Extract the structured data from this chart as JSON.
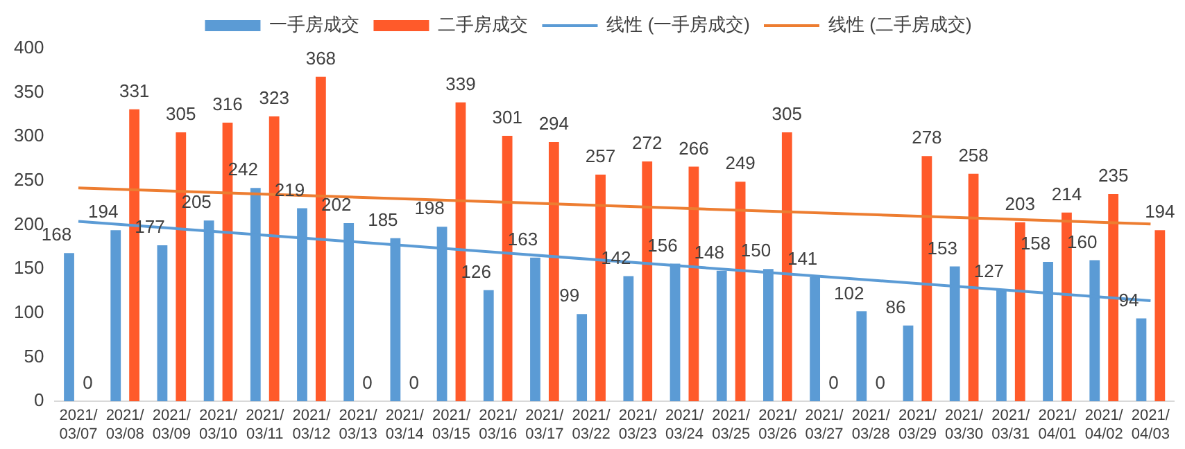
{
  "chart_data": {
    "type": "bar",
    "categories": [
      "2021/03/07",
      "2021/03/08",
      "2021/03/09",
      "2021/03/10",
      "2021/03/11",
      "2021/03/12",
      "2021/03/13",
      "2021/03/14",
      "2021/03/15",
      "2021/03/16",
      "2021/03/17",
      "2021/03/22",
      "2021/03/23",
      "2021/03/24",
      "2021/03/25",
      "2021/03/26",
      "2021/03/27",
      "2021/03/28",
      "2021/03/29",
      "2021/03/30",
      "2021/03/31",
      "2021/04/01",
      "2021/04/02",
      "2021/04/03"
    ],
    "series": [
      {
        "name": "一手房成交",
        "color": "#5b9bd5",
        "values": [
          168,
          194,
          177,
          205,
          242,
          219,
          202,
          185,
          198,
          126,
          163,
          99,
          142,
          156,
          148,
          150,
          141,
          102,
          86,
          153,
          127,
          158,
          160,
          94
        ],
        "value_labels": [
          "168",
          "194",
          "177",
          "205",
          "242",
          "219",
          "202",
          "185",
          "198",
          "126",
          "163",
          "99",
          "142",
          "156",
          "148",
          "150",
          "141",
          "102",
          "86",
          "153",
          "127",
          "158",
          "160",
          "94"
        ]
      },
      {
        "name": "二手房成交",
        "color": "#ff5a2a",
        "values": [
          0,
          331,
          305,
          316,
          323,
          368,
          0,
          0,
          339,
          301,
          294,
          257,
          272,
          266,
          249,
          305,
          0,
          0,
          278,
          258,
          203,
          214,
          235,
          194
        ],
        "value_labels": [
          "0",
          "331",
          "305",
          "316",
          "323",
          "368",
          "0",
          "0",
          "339",
          "301",
          "294",
          "257",
          "272",
          "266",
          "249",
          "305",
          "0",
          "0",
          "278",
          "258",
          "203",
          "214",
          "235",
          "194"
        ]
      },
      {
        "name": "线性 (一手房成交)",
        "type": "line",
        "color": "#5b9bd5",
        "x": [
          "2021/03/07",
          "2021/04/03"
        ],
        "values": [
          204,
          114
        ]
      },
      {
        "name": "线性 (二手房成交)",
        "type": "line",
        "color": "#ed7d31",
        "x": [
          "2021/03/07",
          "2021/04/03"
        ],
        "values": [
          242,
          201
        ]
      }
    ],
    "ylim": [
      0,
      400
    ],
    "yticks": [
      0,
      50,
      100,
      150,
      200,
      250,
      300,
      350,
      400
    ],
    "legend": "top",
    "marker": "none"
  }
}
